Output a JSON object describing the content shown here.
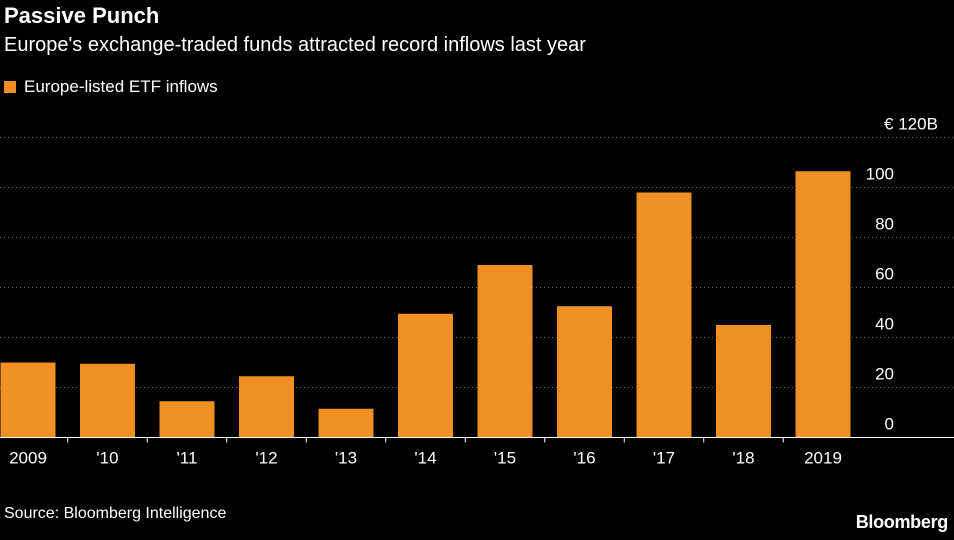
{
  "header": {
    "title": "Passive Punch",
    "subtitle": "Europe's exchange-traded funds attracted record inflows last year"
  },
  "footer": {
    "source": "Source: Bloomberg Intelligence",
    "logo_text": "Bloomberg"
  },
  "colors": {
    "bar": "#ef8f24",
    "grid": "#666666",
    "axis": "#ffffff",
    "background": "#000000"
  },
  "chart_data": {
    "type": "bar",
    "categories": [
      "2009",
      "'10",
      "'11",
      "'12",
      "'13",
      "'14",
      "'15",
      "'16",
      "'17",
      "'18",
      "2019"
    ],
    "series": [
      {
        "name": "Europe-listed ETF inflows",
        "values": [
          30,
          29.5,
          14.5,
          24.5,
          11.5,
          49.5,
          69,
          52.5,
          98,
          45,
          106.5
        ]
      }
    ],
    "ylim": [
      0,
      120
    ],
    "yticks": [
      0,
      20,
      40,
      60,
      80,
      100,
      120
    ],
    "ytick_labels": [
      "0",
      "20",
      "40",
      "60",
      "80",
      "100",
      "€ 120B"
    ],
    "y_axis_position": "right",
    "grid": true,
    "legend_position": "top-left"
  }
}
